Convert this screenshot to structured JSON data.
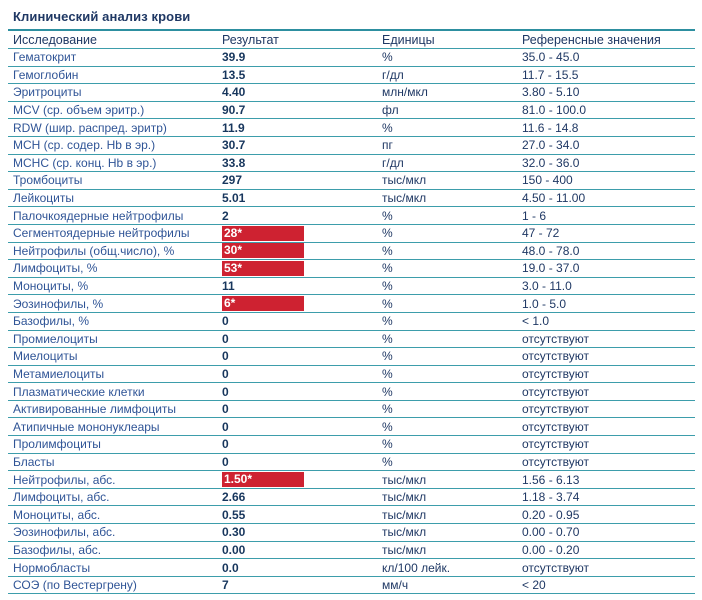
{
  "title": "Клинический анализ крови",
  "columns": [
    "Исследование",
    "Результат",
    "Единицы",
    "Референсные значения"
  ],
  "colors": {
    "title_navy": "#1f3864",
    "label_blue": "#2f5496",
    "value_navy": "#17365d",
    "divider_teal": "#3d9dab",
    "flag_red": "#ce2231",
    "flag_text": "#ffffff"
  },
  "rows": [
    {
      "name": "Гематокрит",
      "result": "39.9",
      "flagged": false,
      "units": "%",
      "ref": "35.0 - 45.0"
    },
    {
      "name": "Гемоглобин",
      "result": "13.5",
      "flagged": false,
      "units": "г/дл",
      "ref": "11.7 - 15.5"
    },
    {
      "name": "Эритроциты",
      "result": "4.40",
      "flagged": false,
      "units": "млн/мкл",
      "ref": "3.80 - 5.10"
    },
    {
      "name": "MCV (ср. объем эритр.)",
      "result": "90.7",
      "flagged": false,
      "units": "фл",
      "ref": "81.0 - 100.0"
    },
    {
      "name": "RDW (шир. распред. эритр)",
      "result": "11.9",
      "flagged": false,
      "units": "%",
      "ref": "11.6 - 14.8"
    },
    {
      "name": "MCH (ср. содер. Hb в эр.)",
      "result": "30.7",
      "flagged": false,
      "units": "пг",
      "ref": "27.0 - 34.0"
    },
    {
      "name": "MCHC (ср. конц. Hb в эр.)",
      "result": "33.8",
      "flagged": false,
      "units": "г/дл",
      "ref": "32.0 - 36.0"
    },
    {
      "name": "Тромбоциты",
      "result": "297",
      "flagged": false,
      "units": "тыс/мкл",
      "ref": "150 - 400"
    },
    {
      "name": "Лейкоциты",
      "result": "5.01",
      "flagged": false,
      "units": "тыс/мкл",
      "ref": "4.50 - 11.00"
    },
    {
      "name": "Палочкоядерные нейтрофилы",
      "result": "2",
      "flagged": false,
      "units": "%",
      "ref": "1 - 6"
    },
    {
      "name": "Сегментоядерные нейтрофилы",
      "result": "28*",
      "flagged": true,
      "units": "%",
      "ref": "47 - 72"
    },
    {
      "name": "Нейтрофилы (общ.число), %",
      "result": "30*",
      "flagged": true,
      "units": "%",
      "ref": "48.0 - 78.0"
    },
    {
      "name": "Лимфоциты, %",
      "result": "53*",
      "flagged": true,
      "units": "%",
      "ref": "19.0 - 37.0"
    },
    {
      "name": "Моноциты, %",
      "result": "11",
      "flagged": false,
      "units": "%",
      "ref": "3.0 - 11.0"
    },
    {
      "name": "Эозинофилы, %",
      "result": "6*",
      "flagged": true,
      "units": "%",
      "ref": "1.0 - 5.0"
    },
    {
      "name": "Базофилы, %",
      "result": "0",
      "flagged": false,
      "units": "%",
      "ref": "< 1.0"
    },
    {
      "name": "Промиелоциты",
      "result": "0",
      "flagged": false,
      "units": "%",
      "ref": "отсутствуют"
    },
    {
      "name": "Миелоциты",
      "result": "0",
      "flagged": false,
      "units": "%",
      "ref": "отсутствуют"
    },
    {
      "name": "Метамиелоциты",
      "result": "0",
      "flagged": false,
      "units": "%",
      "ref": "отсутствуют"
    },
    {
      "name": "Плазматические клетки",
      "result": "0",
      "flagged": false,
      "units": "%",
      "ref": "отсутствуют"
    },
    {
      "name": "Активированные лимфоциты",
      "result": "0",
      "flagged": false,
      "units": "%",
      "ref": "отсутствуют"
    },
    {
      "name": "Атипичные мононуклеары",
      "result": "0",
      "flagged": false,
      "units": "%",
      "ref": "отсутствуют"
    },
    {
      "name": "Пролимфоциты",
      "result": "0",
      "flagged": false,
      "units": "%",
      "ref": "отсутствуют"
    },
    {
      "name": "Бласты",
      "result": "0",
      "flagged": false,
      "units": "%",
      "ref": "отсутствуют"
    },
    {
      "name": "Нейтрофилы, абс.",
      "result": "1.50*",
      "flagged": true,
      "units": "тыс/мкл",
      "ref": "1.56 - 6.13"
    },
    {
      "name": "Лимфоциты, абс.",
      "result": "2.66",
      "flagged": false,
      "units": "тыс/мкл",
      "ref": "1.18 - 3.74"
    },
    {
      "name": "Моноциты, абс.",
      "result": "0.55",
      "flagged": false,
      "units": "тыс/мкл",
      "ref": "0.20 - 0.95"
    },
    {
      "name": "Эозинофилы, абс.",
      "result": "0.30",
      "flagged": false,
      "units": "тыс/мкл",
      "ref": "0.00 - 0.70"
    },
    {
      "name": "Базофилы, абс.",
      "result": "0.00",
      "flagged": false,
      "units": "тыс/мкл",
      "ref": "0.00 - 0.20"
    },
    {
      "name": "Нормобласты",
      "result": "0.0",
      "flagged": false,
      "units": "кл/100 лейк.",
      "ref": "отсутствуют"
    },
    {
      "name": "СОЭ (по Вестергрену)",
      "result": "7",
      "flagged": false,
      "units": "мм/ч",
      "ref": "< 20"
    }
  ]
}
